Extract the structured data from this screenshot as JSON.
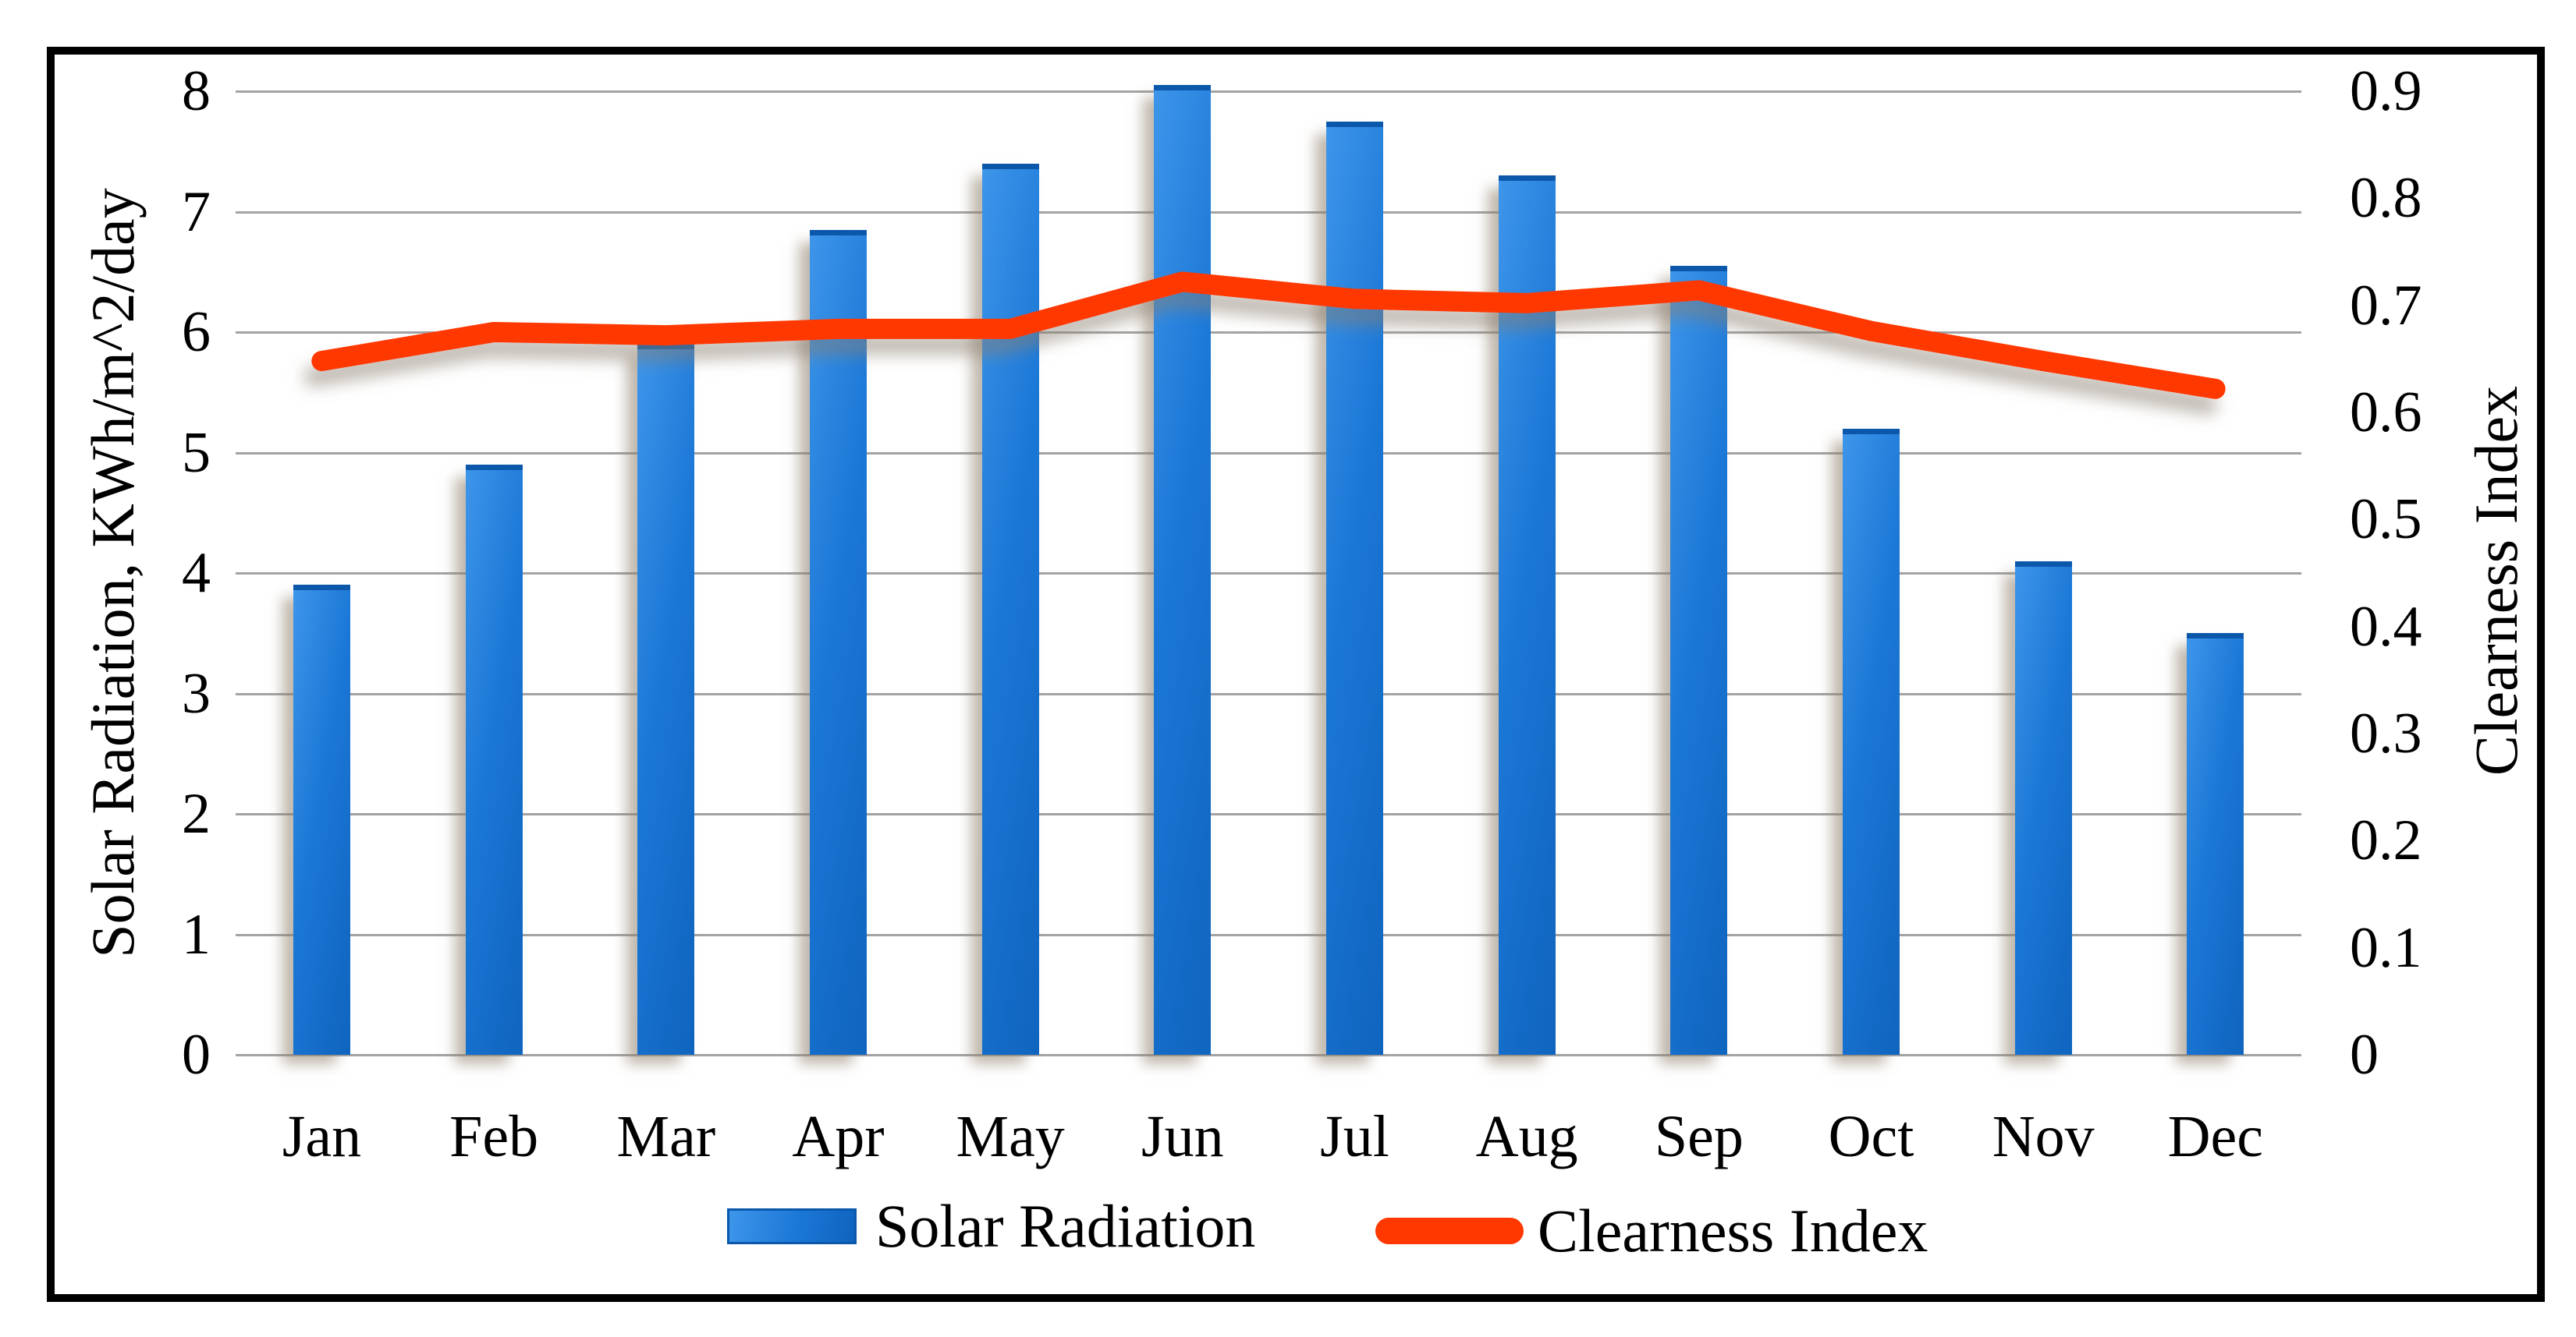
{
  "chart_data": {
    "type": "bar-line-combo",
    "categories": [
      "Jan",
      "Feb",
      "Mar",
      "Apr",
      "May",
      "Jun",
      "Jul",
      "Aug",
      "Sep",
      "Oct",
      "Nov",
      "Dec"
    ],
    "series": [
      {
        "name": "Solar Radiation",
        "type": "bar",
        "axis": "left",
        "values": [
          3.9,
          4.9,
          5.9,
          6.85,
          7.4,
          8.05,
          7.75,
          7.3,
          6.55,
          5.2,
          4.1,
          3.5
        ]
      },
      {
        "name": "Clearness Index",
        "type": "line",
        "axis": "right",
        "values": [
          0.648,
          0.675,
          0.672,
          0.678,
          0.678,
          0.722,
          0.706,
          0.702,
          0.714,
          0.676,
          0.648,
          0.622
        ]
      }
    ],
    "left_axis": {
      "title": "Solar Radiation, KWh/m^2/day",
      "min": 0,
      "max": 8,
      "step": 1,
      "tick_labels": [
        "0",
        "1",
        "2",
        "3",
        "4",
        "5",
        "6",
        "7",
        "8"
      ]
    },
    "right_axis": {
      "title": "Clearness Index",
      "min": 0,
      "max": 0.9,
      "step": 0.1,
      "tick_labels": [
        "0",
        "0.1",
        "0.2",
        "0.3",
        "0.4",
        "0.5",
        "0.6",
        "0.7",
        "0.8",
        "0.9"
      ]
    },
    "grid": true,
    "legend_position": "bottom"
  },
  "legend": {
    "items": [
      {
        "label": "Solar Radiation",
        "swatch": "bar-swatch",
        "color": "#1b77d6"
      },
      {
        "label": "Clearness Index",
        "swatch": "line-swatch",
        "color": "#ff3800"
      }
    ]
  },
  "colors": {
    "bar_fill": "#1b77d6",
    "bar_edge": "#0b58ab",
    "line": "#ff3800",
    "gridline": "#a3a3a3",
    "frame_border": "#000000",
    "background": "#ffffff",
    "text": "#000000"
  }
}
